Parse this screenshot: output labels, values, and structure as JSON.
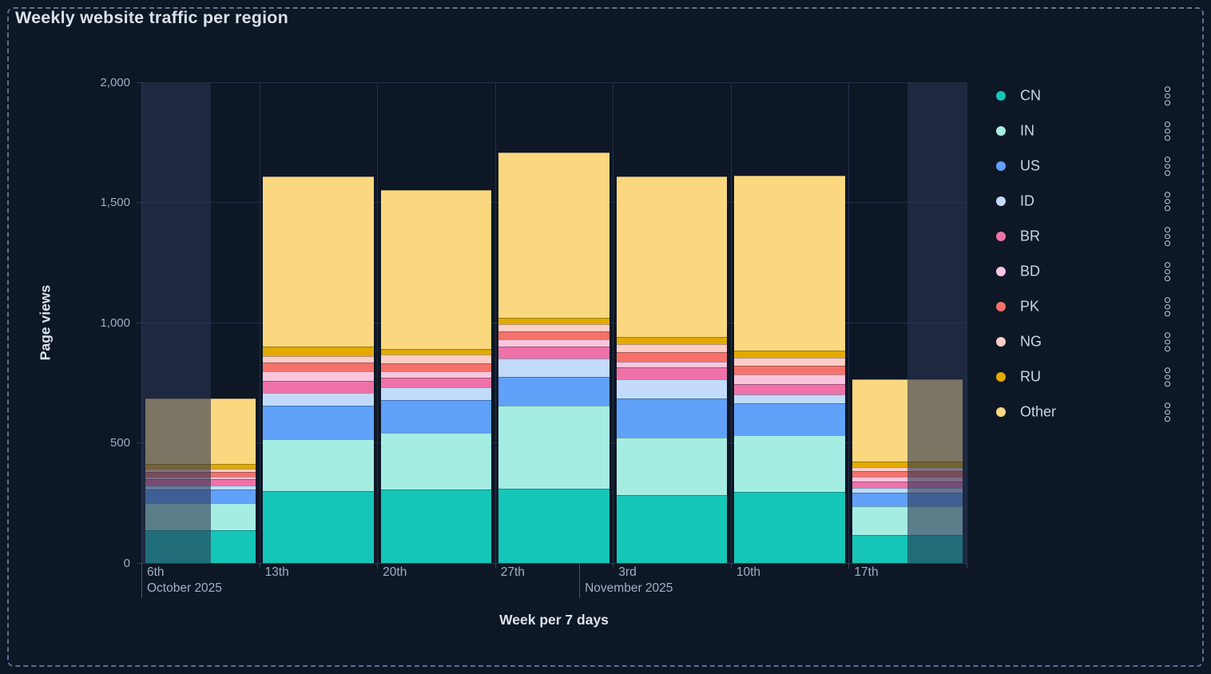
{
  "panel": {
    "title": "Weekly website traffic per region"
  },
  "axes": {
    "y": {
      "title": "Page views",
      "tick_labels": [
        {
          "label": "0",
          "value": 0
        },
        {
          "label": "500",
          "value": 500
        },
        {
          "label": "1,000",
          "value": 1000
        },
        {
          "label": "1,500",
          "value": 1500
        },
        {
          "label": "2,000",
          "value": 2000
        }
      ]
    },
    "x": {
      "title": "Week per 7 days",
      "tick_labels": [
        "6th",
        "13th",
        "20th",
        "27th",
        "3rd",
        "10th",
        "17th"
      ],
      "month_labels": [
        {
          "label": "October 2025",
          "band": 0,
          "day_offset": 0
        },
        {
          "label": "November 2025",
          "band": 3,
          "day_offset": 5
        }
      ]
    }
  },
  "legend": {
    "position": "right",
    "actions_icon": "kebab-dots-icon",
    "items": [
      {
        "label": "CN",
        "color": "#15C6B8"
      },
      {
        "label": "IN",
        "color": "#A5EDE3"
      },
      {
        "label": "US",
        "color": "#60A1FA"
      },
      {
        "label": "ID",
        "color": "#C2DBFB"
      },
      {
        "label": "BR",
        "color": "#EE72A8"
      },
      {
        "label": "BD",
        "color": "#F9C5DC"
      },
      {
        "label": "PK",
        "color": "#F5726B"
      },
      {
        "label": "NG",
        "color": "#FECDC5"
      },
      {
        "label": "RU",
        "color": "#E2AA00"
      },
      {
        "label": "Other",
        "color": "#FBD880"
      }
    ]
  },
  "chart_data": {
    "type": "bar",
    "stacked": true,
    "orientation": "vertical",
    "title": "Weekly website traffic per region",
    "xlabel": "Week per 7 days",
    "ylabel": "Page views",
    "ylim": [
      0,
      2000
    ],
    "x_interval": "7 days",
    "grid": "horizontal gridlines at 500 intervals plus vertical weekly band lines",
    "legend_position": "right",
    "categories": [
      "2025-10-06",
      "2025-10-13",
      "2025-10-20",
      "2025-10-27",
      "2025-11-03",
      "2025-11-10",
      "2025-11-17"
    ],
    "category_tick_labels": [
      "6th",
      "13th",
      "20th",
      "27th",
      "3rd",
      "10th",
      "17th"
    ],
    "series": [
      {
        "name": "CN",
        "color": "#15C6B8",
        "values": [
          135,
          299,
          307,
          310,
          283,
          295,
          116
        ]
      },
      {
        "name": "IN",
        "color": "#A5EDE3",
        "values": [
          114,
          217,
          233,
          343,
          238,
          235,
          119
        ]
      },
      {
        "name": "US",
        "color": "#60A1FA",
        "values": [
          56,
          137,
          136,
          121,
          164,
          133,
          58
        ]
      },
      {
        "name": "ID",
        "color": "#C2DBFB",
        "values": [
          16,
          54,
          53,
          75,
          79,
          37,
          19
        ]
      },
      {
        "name": "BR",
        "color": "#EE72A8",
        "values": [
          26,
          49,
          41,
          50,
          50,
          45,
          28
        ]
      },
      {
        "name": "BD",
        "color": "#F9C5DC",
        "values": [
          13,
          40,
          26,
          29,
          22,
          39,
          17
        ]
      },
      {
        "name": "PK",
        "color": "#F5726B",
        "values": [
          19,
          36,
          34,
          36,
          39,
          35,
          25
        ]
      },
      {
        "name": "NG",
        "color": "#FECDC5",
        "values": [
          12,
          29,
          35,
          30,
          36,
          34,
          17
        ]
      },
      {
        "name": "RU",
        "color": "#E2AA00",
        "values": [
          19,
          38,
          24,
          25,
          30,
          30,
          22
        ]
      },
      {
        "name": "Other",
        "color": "#FBD880",
        "values": [
          274,
          707,
          662,
          686,
          667,
          727,
          343
        ]
      }
    ],
    "totals": [
      684,
      1606,
      1551,
      1705,
      1608,
      1610,
      764
    ],
    "dimmed_partial_ranges": [
      {
        "band": 0,
        "from": 0.0,
        "to": 0.59
      },
      {
        "band": 6,
        "from": 0.5,
        "to": 1.0
      }
    ]
  },
  "colors": {
    "background": "#0D1726",
    "panel_border": "#5F7094",
    "gridline": "#243048",
    "axis_line": "#2C3A55",
    "tick_text": "#9FACC2",
    "title_text": "#D9E0EB",
    "axis_title_text": "#DCE2EC",
    "legend_text": "#CDD5E2",
    "dim_overlay": "rgba(42,52,80,0.6)"
  }
}
